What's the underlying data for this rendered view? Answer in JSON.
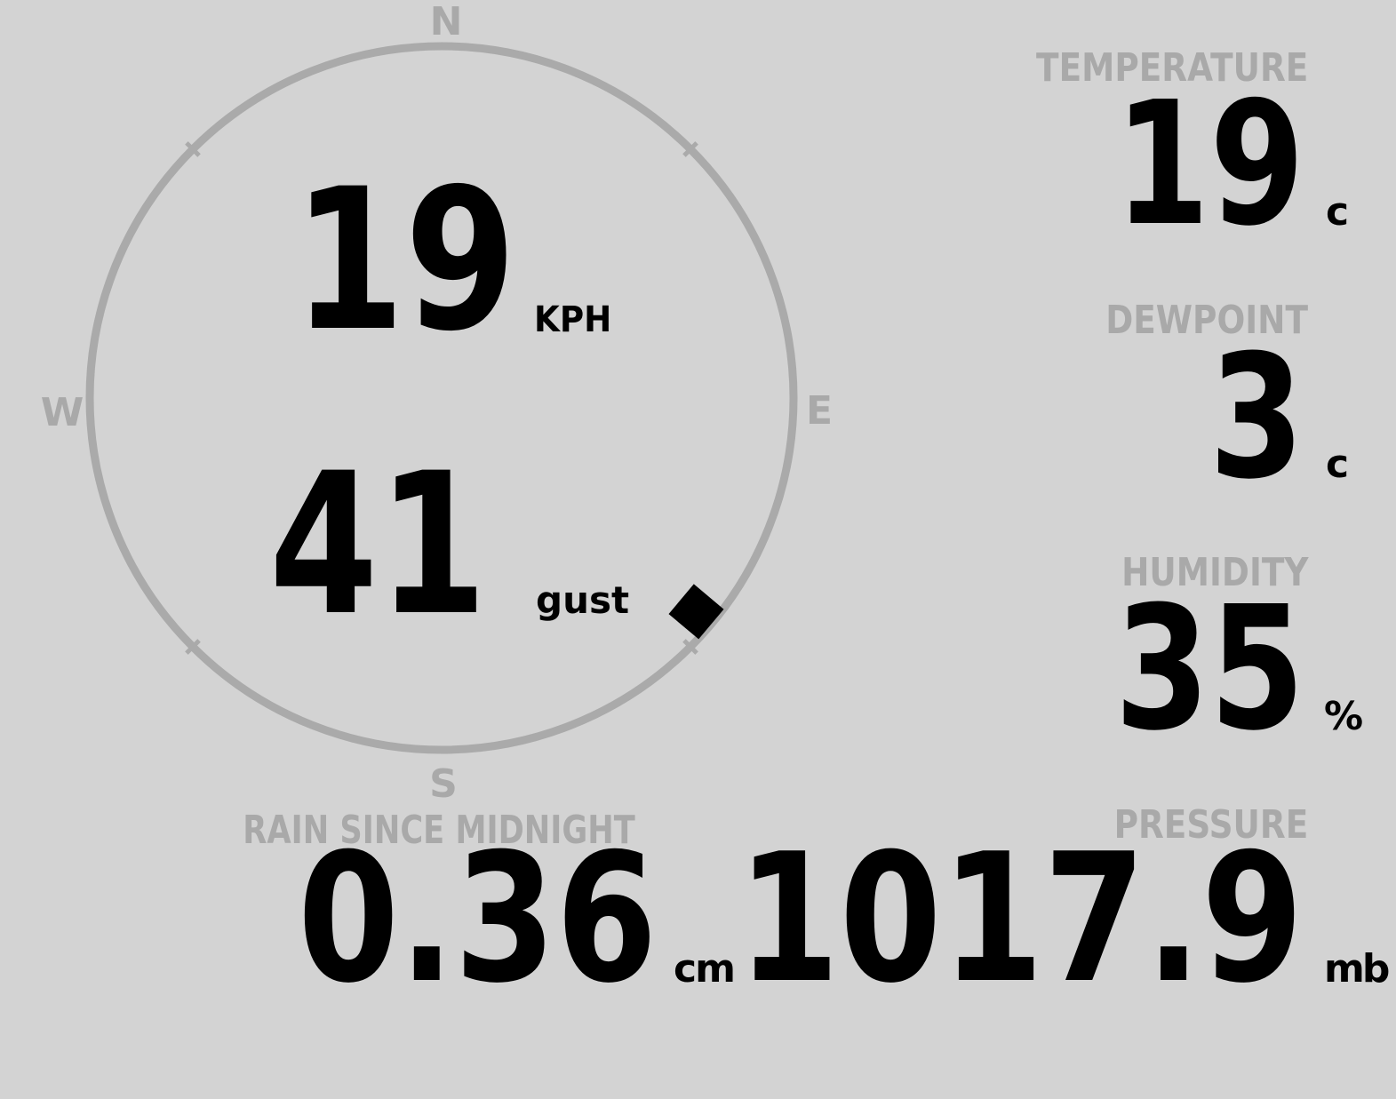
{
  "colors": {
    "background": "#d3d3d3",
    "label": "#a9a9a9",
    "value": "#000000",
    "compass_ring": "#aaaaaa"
  },
  "wind": {
    "compass": {
      "n": "N",
      "e": "E",
      "s": "S",
      "w": "W"
    },
    "direction_degrees": 130,
    "speed": "19",
    "speed_unit": "KPH",
    "gust": "41",
    "gust_unit": "gust"
  },
  "temperature": {
    "label": "TEMPERATURE",
    "value": "19",
    "unit": "c"
  },
  "dewpoint": {
    "label": "DEWPOINT",
    "value": "3",
    "unit": "c"
  },
  "humidity": {
    "label": "HUMIDITY",
    "value": "35",
    "unit": "%"
  },
  "rain": {
    "label": "RAIN SINCE MIDNIGHT",
    "value": "0.36",
    "unit": "cm"
  },
  "pressure": {
    "label": "PRESSURE",
    "value": "1017.9",
    "unit": "mb"
  }
}
